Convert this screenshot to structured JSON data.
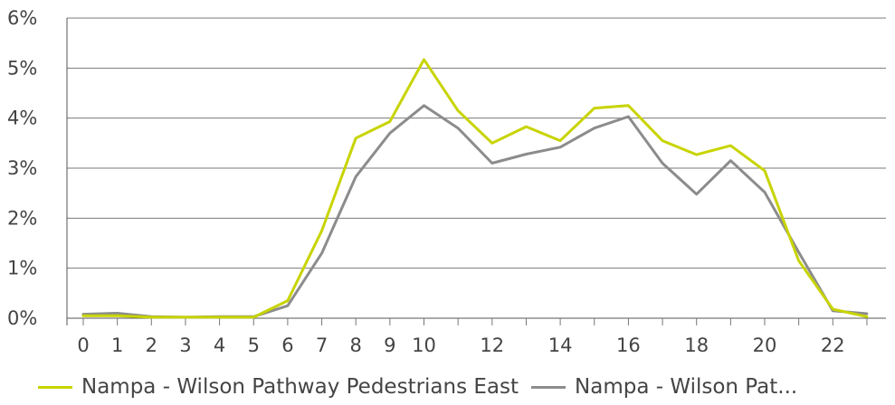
{
  "chart_data": {
    "type": "line",
    "x": [
      0,
      1,
      2,
      3,
      4,
      5,
      6,
      7,
      8,
      9,
      10,
      11,
      12,
      13,
      14,
      15,
      16,
      17,
      18,
      19,
      20,
      21,
      22,
      23
    ],
    "x_tick_labels": [
      "0",
      "1",
      "2",
      "3",
      "4",
      "5",
      "6",
      "7",
      "8",
      "9",
      "10",
      "12",
      "14",
      "16",
      "18",
      "20",
      "22"
    ],
    "x_tick_values": [
      0,
      1,
      2,
      3,
      4,
      5,
      6,
      7,
      8,
      9,
      10,
      12,
      14,
      16,
      18,
      20,
      22
    ],
    "y_tick_labels": [
      "0%",
      "1%",
      "2%",
      "3%",
      "4%",
      "5%",
      "6%"
    ],
    "ylim": [
      0,
      6
    ],
    "grid": true,
    "legend_position": "bottom",
    "series": [
      {
        "name": "Nampa - Wilson Pathway Pedestrians East",
        "color": "#c8d400",
        "values": [
          0.05,
          0.05,
          0.02,
          0.02,
          0.02,
          0.02,
          0.35,
          1.75,
          3.6,
          3.93,
          5.17,
          4.15,
          3.5,
          3.83,
          3.55,
          4.2,
          4.25,
          3.55,
          3.27,
          3.45,
          2.95,
          1.15,
          0.18,
          0.03
        ]
      },
      {
        "name": "Nampa - Wilson Pat...",
        "color": "#8c8c8c",
        "values": [
          0.08,
          0.1,
          0.03,
          0.02,
          0.03,
          0.03,
          0.25,
          1.3,
          2.83,
          3.7,
          4.25,
          3.8,
          3.1,
          3.28,
          3.42,
          3.8,
          4.03,
          3.1,
          2.48,
          3.15,
          2.52,
          1.32,
          0.15,
          0.09
        ]
      }
    ]
  }
}
